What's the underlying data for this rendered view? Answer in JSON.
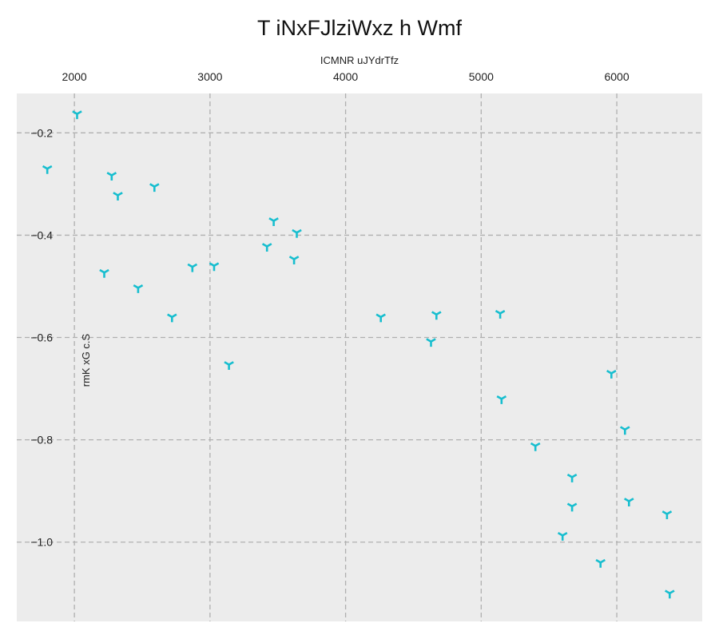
{
  "chart_data": {
    "type": "scatter",
    "title": "T iNxFJlziWxz h Wmf",
    "xlabel": "ICMNR uJYdrTfz",
    "ylabel": "rmK xG c.S",
    "x_axis_position": "top",
    "xlim": [
      1575,
      6630
    ],
    "ylim": [
      -1.155,
      -0.123
    ],
    "xticks": [
      2000,
      3000,
      4000,
      5000,
      6000
    ],
    "yticks": [
      -0.2,
      -0.4,
      -0.6,
      -0.8,
      -1.0
    ],
    "xtick_labels": [
      "2000",
      "3000",
      "4000",
      "5000",
      "6000"
    ],
    "ytick_labels": [
      "−0.2",
      "−0.4",
      "−0.6",
      "−0.8",
      "−1.0"
    ],
    "grid": true,
    "marker": "tri_down",
    "colors": {
      "background": "#ececec",
      "grid": "#b0b0b0",
      "series": "#17becf"
    },
    "series": [
      {
        "x": [
          2020,
          1800,
          2275,
          2320,
          2590,
          2220,
          2470,
          2720,
          2870,
          3030,
          3140,
          3470,
          3420,
          3640,
          3620,
          4260,
          4670,
          4630,
          5140,
          5150,
          5400,
          5960,
          6060,
          5670,
          5670,
          6090,
          5600,
          5880,
          6370,
          6390
        ],
        "y": [
          -0.163,
          -0.27,
          -0.283,
          -0.322,
          -0.305,
          -0.473,
          -0.503,
          -0.56,
          -0.462,
          -0.46,
          -0.653,
          -0.372,
          -0.422,
          -0.395,
          -0.447,
          -0.56,
          -0.555,
          -0.608,
          -0.553,
          -0.72,
          -0.812,
          -0.67,
          -0.78,
          -0.873,
          -0.93,
          -0.92,
          -0.987,
          -1.04,
          -0.945,
          -1.1
        ]
      }
    ]
  }
}
